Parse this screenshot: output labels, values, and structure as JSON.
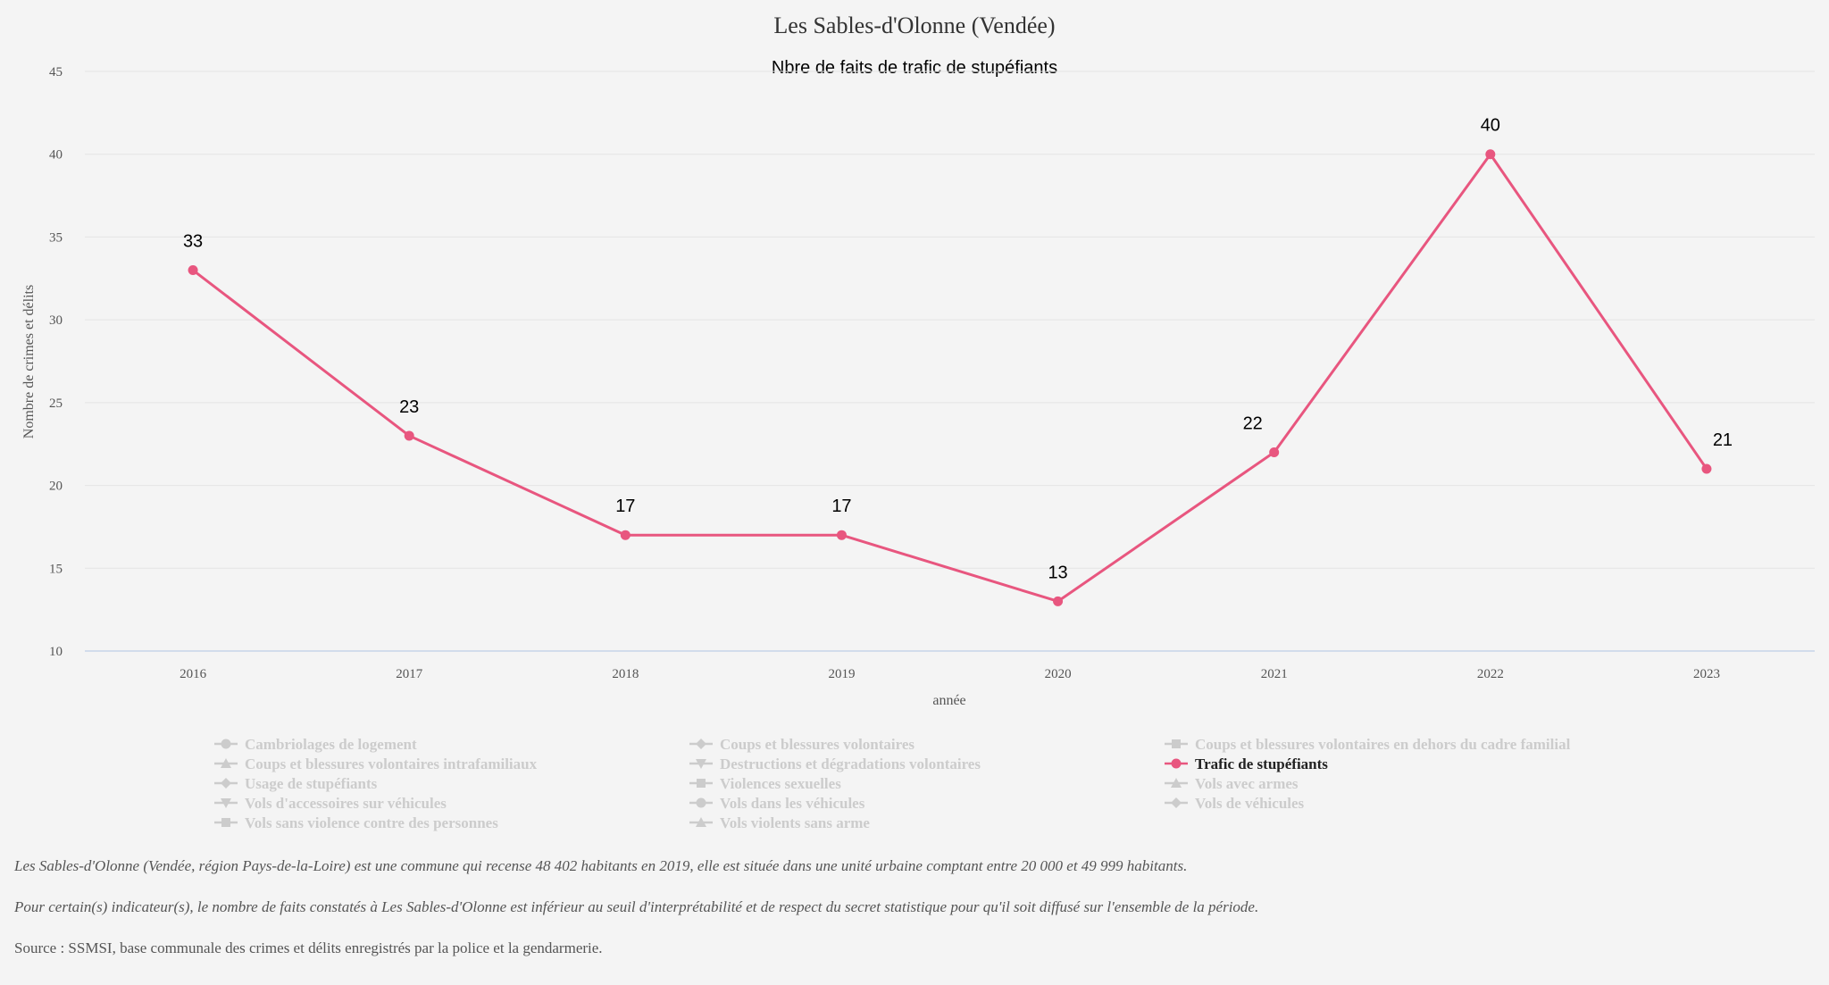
{
  "chart_data": {
    "type": "line",
    "title": "Les Sables-d'Olonne (Vendée)",
    "subtitle": "Nbre de faits de trafic de stupéfiants",
    "xlabel": "année",
    "ylabel": "Nombre de crimes et délits",
    "ylim": [
      10,
      45
    ],
    "yticks": [
      10,
      15,
      20,
      25,
      30,
      35,
      40,
      45
    ],
    "categories": [
      "2016",
      "2017",
      "2018",
      "2019",
      "2020",
      "2021",
      "2022",
      "2023"
    ],
    "series": [
      {
        "name": "Trafic de stupéfiants",
        "color": "#e8567f",
        "values": [
          33,
          23,
          17,
          17,
          13,
          22,
          40,
          21
        ]
      }
    ],
    "grid": true,
    "legend": {
      "placement": "bottom",
      "active_color": "#e8567f",
      "inactive_color": "#cccccc",
      "items": [
        {
          "label": "Cambriolages de logement",
          "symbol": "circle",
          "active": false
        },
        {
          "label": "Coups et blessures volontaires",
          "symbol": "diamond",
          "active": false
        },
        {
          "label": "Coups et blessures volontaires en dehors du cadre familial",
          "symbol": "square",
          "active": false
        },
        {
          "label": "Coups et blessures volontaires intrafamiliaux",
          "symbol": "triangle",
          "active": false
        },
        {
          "label": "Destructions et dégradations volontaires",
          "symbol": "triangle-down",
          "active": false
        },
        {
          "label": "Trafic de stupéfiants",
          "symbol": "circle",
          "active": true
        },
        {
          "label": "Usage de stupéfiants",
          "symbol": "diamond",
          "active": false
        },
        {
          "label": "Violences sexuelles",
          "symbol": "square",
          "active": false
        },
        {
          "label": "Vols avec armes",
          "symbol": "triangle",
          "active": false
        },
        {
          "label": "Vols d'accessoires sur véhicules",
          "symbol": "triangle-down",
          "active": false
        },
        {
          "label": "Vols dans les véhicules",
          "symbol": "circle",
          "active": false
        },
        {
          "label": "Vols de véhicules",
          "symbol": "diamond",
          "active": false
        },
        {
          "label": "Vols sans violence contre des personnes",
          "symbol": "square",
          "active": false
        },
        {
          "label": "Vols violents sans arme",
          "symbol": "triangle",
          "active": false
        }
      ]
    }
  },
  "notes": {
    "description": "Les Sables-d'Olonne (Vendée, région Pays-de-la-Loire) est une commune qui recense 48 402 habitants en 2019, elle est située dans une unité urbaine comptant entre 20 000 et 49 999 habitants.",
    "threshold": "Pour certain(s) indicateur(s), le nombre de faits constatés à Les Sables-d'Olonne est inférieur au seuil d'interprétabilité et de respect du secret statistique pour qu'il soit diffusé sur l'ensemble de la période.",
    "source": "Source : SSMSI, base communale des crimes et délits enregistrés par la police et la gendarmerie."
  }
}
